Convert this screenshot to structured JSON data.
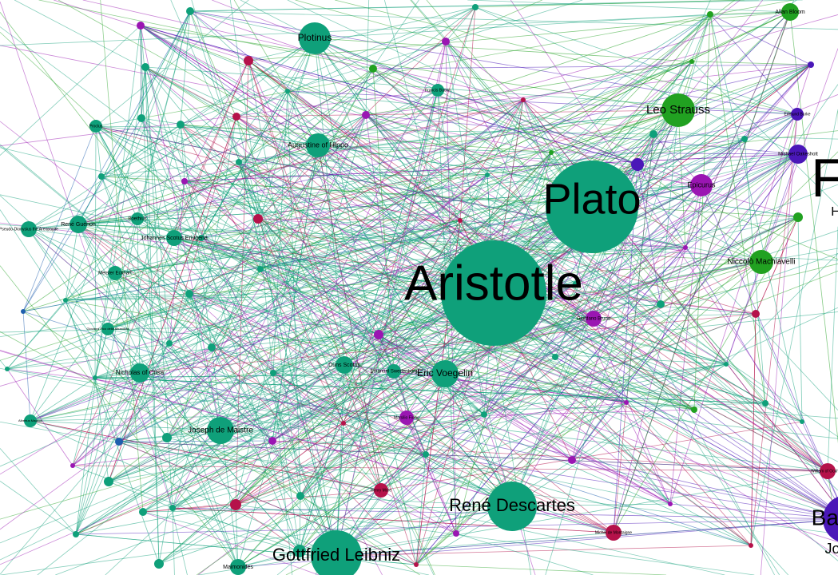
{
  "colors": {
    "teal": "#0fa07a",
    "green": "#21a121",
    "violet": "#9a16b2",
    "indigo": "#4a17b8",
    "crimson": "#b5124a",
    "blue": "#1f5fae"
  },
  "nodes": [
    {
      "id": "aristotle",
      "label": "Aristotle",
      "color": "teal"
    },
    {
      "id": "plato",
      "label": "Plato",
      "color": "teal"
    },
    {
      "id": "rene-descartes",
      "label": "René Descartes",
      "color": "teal"
    },
    {
      "id": "gottfried-leibniz",
      "label": "Gottfried Leibniz",
      "color": "teal"
    },
    {
      "id": "baruch",
      "label": "Baruch",
      "color": "indigo"
    },
    {
      "id": "plotinus",
      "label": "Plotinus",
      "color": "teal"
    },
    {
      "id": "augustine",
      "label": "Augustine of Hippo",
      "color": "teal"
    },
    {
      "id": "leo-strauss",
      "label": "Leo Strauss",
      "color": "green"
    },
    {
      "id": "niccolo",
      "label": "Niccolò Machiavelli",
      "color": "green"
    },
    {
      "id": "epicurus",
      "label": "Epicurus",
      "color": "violet"
    },
    {
      "id": "eric-voegelin",
      "label": "Eric Voegelin",
      "color": "teal"
    },
    {
      "id": "joseph-de-maistre",
      "label": "Joseph de Maistre",
      "color": "teal"
    },
    {
      "id": "nicholas-of-cusa",
      "label": "Nicholas of Cusa",
      "color": "teal"
    },
    {
      "id": "duns-scotus",
      "label": "Duns Scotus",
      "color": "teal"
    },
    {
      "id": "allan-bloom",
      "label": "Allan Bloom",
      "color": "green"
    },
    {
      "id": "maimonides",
      "label": "Maimonides",
      "color": "teal"
    },
    {
      "id": "rene-guenon",
      "label": "René Guénon",
      "color": "teal"
    },
    {
      "id": "meister-eckhart",
      "label": "Meister Eckhart",
      "color": "teal"
    },
    {
      "id": "pseudo-dionysius",
      "label": "Pseudo-Dionysius the Areopagite",
      "color": "teal"
    },
    {
      "id": "johannes-scotus",
      "label": "Johannes Scotus Eriugena",
      "color": "teal"
    },
    {
      "id": "boethius",
      "label": "Boethius",
      "color": "teal"
    },
    {
      "id": "proclus",
      "label": "Proclus",
      "color": "teal"
    },
    {
      "id": "francis-bacon",
      "label": "Francis Bacon",
      "color": "teal"
    },
    {
      "id": "emanuel-swedenborg",
      "label": "Emanuel Swedenborg",
      "color": "teal"
    },
    {
      "id": "michael-oakeshott",
      "label": "Michael Oakeshott",
      "color": "indigo"
    },
    {
      "id": "edmund-burke",
      "label": "Edmund Burke",
      "color": "indigo"
    },
    {
      "id": "giordano-bruno",
      "label": "Giordano Bruno",
      "color": "violet"
    },
    {
      "id": "marsilio-ficino",
      "label": "Marsilio Ficino",
      "color": "violet"
    },
    {
      "id": "michel-de-montaigne",
      "label": "Michel de Montaigne",
      "color": "crimson"
    },
    {
      "id": "henry-more",
      "label": "Henry More",
      "color": "crimson"
    },
    {
      "id": "william-ockham",
      "label": "William of Ockham",
      "color": "crimson"
    },
    {
      "id": "jo-partial",
      "label": "Jo",
      "color": "indigo"
    },
    {
      "id": "h-partial",
      "label": "H",
      "color": "indigo"
    },
    {
      "id": "f-partial",
      "label": "F",
      "color": "indigo"
    },
    {
      "id": "albertus-magnus",
      "label": "Albertus Magnus",
      "color": "teal"
    },
    {
      "id": "giovanni-pico",
      "label": "Giovanni Pico della Mirandola",
      "color": "teal"
    }
  ]
}
